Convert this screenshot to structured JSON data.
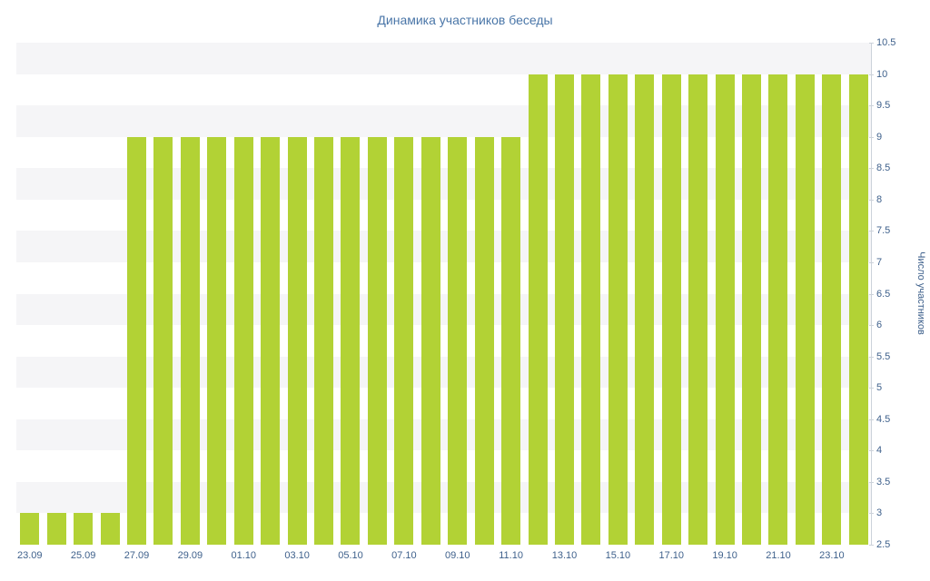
{
  "chart_data": {
    "type": "bar",
    "title": "Динамика участников беседы",
    "xlabel": "",
    "ylabel": "Число участников",
    "ylim": [
      2.5,
      10.5
    ],
    "ytick_step": 0.5,
    "y_tick_labels": [
      "2.5",
      "3",
      "3.5",
      "4",
      "4.5",
      "5",
      "5.5",
      "6",
      "6.5",
      "7",
      "7.5",
      "8",
      "8.5",
      "9",
      "9.5",
      "10",
      "10.5"
    ],
    "x_tick_labels": [
      "23.09",
      "25.09",
      "27.09",
      "29.09",
      "01.10",
      "03.10",
      "05.10",
      "07.10",
      "09.10",
      "11.10",
      "13.10",
      "15.10",
      "17.10",
      "19.10",
      "21.10",
      "23.10"
    ],
    "categories": [
      "23.09",
      "24.09",
      "25.09",
      "26.09",
      "27.09",
      "28.09",
      "29.09",
      "30.09",
      "01.10",
      "02.10",
      "03.10",
      "04.10",
      "05.10",
      "06.10",
      "07.10",
      "08.10",
      "09.10",
      "10.10",
      "11.10",
      "12.10",
      "13.10",
      "14.10",
      "15.10",
      "16.10",
      "17.10",
      "18.10",
      "19.10",
      "20.10",
      "21.10",
      "22.10",
      "23.10",
      "24.10"
    ],
    "values": [
      3,
      3,
      3,
      3,
      9,
      9,
      9,
      9,
      9,
      9,
      9,
      9,
      9,
      9,
      9,
      9,
      9,
      9,
      9,
      10,
      10,
      10,
      10,
      10,
      10,
      10,
      10,
      10,
      10,
      10,
      10,
      10
    ],
    "legend": "none",
    "grid": "striped-horizontal-bands",
    "y_axis_position": "right",
    "colors": {
      "bar": "#b2d235",
      "stripe": "#f5f5f7",
      "axis_line": "#ccd2da",
      "tick_label": "#3f618c",
      "title": "#4a76a8",
      "ylabel": "#3f618c"
    }
  }
}
